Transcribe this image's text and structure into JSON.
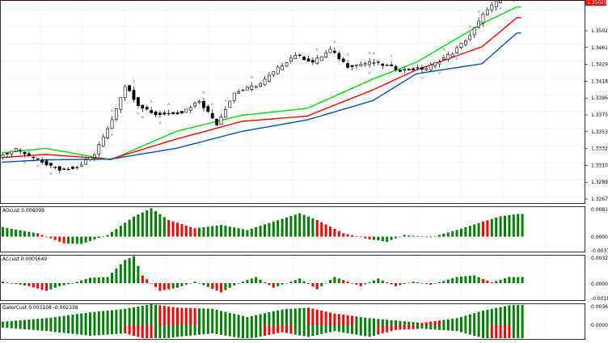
{
  "colors": {
    "background": "#ffffff",
    "grid": "#d8d8d8",
    "frame": "#000000",
    "bull_candle": "#ffffff",
    "bear_candle": "#000000",
    "ma_fast": "#00e000",
    "ma_mid": "#ff0000",
    "ma_slow": "#0050d0",
    "bar_up": "#008000",
    "bar_down": "#ff0000",
    "current_price_bg": "#ff0000",
    "fractal": "#9a9a9a"
  },
  "main": {
    "price_axis_labels": [
      "1.35025",
      "1.34610",
      "1.34295",
      "1.34180",
      "1.33965",
      "1.33750",
      "1.33535",
      "1.33320",
      "1.33105",
      "1.32890",
      "1.32675"
    ],
    "current_price": "1.35025"
  },
  "indicators": [
    {
      "name": "AOcust",
      "label": "AOcust 0.006099",
      "axis_labels": [
        "0.008125",
        "0.000000",
        "-0.003740"
      ]
    },
    {
      "name": "ACcust",
      "label": "ACcust 0.0005649",
      "axis_labels": [
        "0.0032604",
        "0.000000",
        "-0.0018932"
      ]
    },
    {
      "name": "GatorCust",
      "label": "GatorCust 0.003108 -0.002338",
      "axis_labels": [
        "0.003679",
        "0.000000"
      ]
    }
  ],
  "chart_data": [
    {
      "type": "candlestick",
      "title": "",
      "ylim": [
        1.3255,
        1.3515
      ],
      "candle_count": 120,
      "moving_averages": [
        {
          "color": "green",
          "values_at_candles": [
            [
              0,
              1.3302
            ],
            [
              10,
              1.3308
            ],
            [
              25,
              1.3293
            ],
            [
              40,
              1.333
            ],
            [
              55,
              1.3351
            ],
            [
              70,
              1.336
            ],
            [
              85,
              1.3398
            ],
            [
              95,
              1.342
            ],
            [
              110,
              1.347
            ],
            [
              118,
              1.3492
            ]
          ]
        },
        {
          "color": "red",
          "values_at_candles": [
            [
              0,
              1.3296
            ],
            [
              10,
              1.33
            ],
            [
              25,
              1.3294
            ],
            [
              40,
              1.332
            ],
            [
              55,
              1.3343
            ],
            [
              70,
              1.335
            ],
            [
              85,
              1.3384
            ],
            [
              95,
              1.341
            ],
            [
              110,
              1.344
            ],
            [
              118,
              1.3478
            ]
          ]
        },
        {
          "color": "blue",
          "values_at_candles": [
            [
              0,
              1.329
            ],
            [
              10,
              1.3293
            ],
            [
              25,
              1.3294
            ],
            [
              40,
              1.3308
            ],
            [
              55,
              1.333
            ],
            [
              70,
              1.3345
            ],
            [
              85,
              1.337
            ],
            [
              95,
              1.3405
            ],
            [
              110,
              1.3418
            ],
            [
              118,
              1.3458
            ]
          ]
        }
      ]
    },
    {
      "type": "histogram",
      "title": "AOcust 0.006099",
      "ylim": [
        -0.00374,
        0.008125
      ],
      "keypoints": [
        [
          0,
          0.0028
        ],
        [
          8,
          0.001
        ],
        [
          14,
          -0.002
        ],
        [
          18,
          -0.0022
        ],
        [
          24,
          0.0005
        ],
        [
          30,
          0.006
        ],
        [
          34,
          0.0085
        ],
        [
          38,
          0.005
        ],
        [
          44,
          0.0025
        ],
        [
          50,
          0.0035
        ],
        [
          56,
          0.002
        ],
        [
          62,
          0.0045
        ],
        [
          68,
          0.007
        ],
        [
          72,
          0.005
        ],
        [
          78,
          0.001
        ],
        [
          84,
          -0.0008
        ],
        [
          88,
          -0.0015
        ],
        [
          92,
          0.0005
        ],
        [
          98,
          -0.0002
        ],
        [
          104,
          0.002
        ],
        [
          110,
          0.0045
        ],
        [
          114,
          0.0061
        ],
        [
          118,
          0.0068
        ]
      ],
      "red_ranges": [
        [
          8,
          14
        ],
        [
          38,
          44
        ],
        [
          72,
          84
        ],
        [
          96,
          98
        ],
        [
          110,
          111
        ]
      ]
    },
    {
      "type": "histogram",
      "title": "ACcust 0.0005649",
      "ylim": [
        -0.0018932,
        0.0032604
      ],
      "keypoints": [
        [
          0,
          0.0002
        ],
        [
          6,
          -0.0004
        ],
        [
          10,
          -0.001
        ],
        [
          13,
          -0.0004
        ],
        [
          16,
          0.0
        ],
        [
          20,
          0.0007
        ],
        [
          24,
          0.0008
        ],
        [
          28,
          0.003
        ],
        [
          30,
          0.0035
        ],
        [
          32,
          0.001
        ],
        [
          36,
          -0.001
        ],
        [
          40,
          -0.0006
        ],
        [
          44,
          0.0002
        ],
        [
          50,
          -0.0012
        ],
        [
          54,
          0.0
        ],
        [
          58,
          0.0008
        ],
        [
          62,
          -0.0006
        ],
        [
          68,
          0.0006
        ],
        [
          72,
          -0.0008
        ],
        [
          76,
          0.0008
        ],
        [
          82,
          -0.0004
        ],
        [
          86,
          0.0006
        ],
        [
          90,
          -0.0004
        ],
        [
          94,
          0.0002
        ],
        [
          98,
          -0.0002
        ],
        [
          104,
          0.0008
        ],
        [
          108,
          0.001
        ],
        [
          112,
          0.0001
        ],
        [
          116,
          0.0008
        ]
      ],
      "red_ranges": [
        [
          6,
          10
        ],
        [
          32,
          38
        ],
        [
          48,
          50
        ],
        [
          60,
          62
        ],
        [
          70,
          72
        ],
        [
          78,
          82
        ],
        [
          88,
          90
        ],
        [
          96,
          98
        ],
        [
          110,
          112
        ]
      ]
    },
    {
      "type": "histogram",
      "title": "GatorCust 0.003108 -0.002338",
      "ylim": [
        -0.0028,
        0.003679
      ],
      "upper_keypoints": [
        [
          0,
          0.0006
        ],
        [
          10,
          0.0012
        ],
        [
          20,
          0.0022
        ],
        [
          28,
          0.0028
        ],
        [
          34,
          0.0036
        ],
        [
          40,
          0.003
        ],
        [
          48,
          0.0028
        ],
        [
          56,
          0.0014
        ],
        [
          64,
          0.0027
        ],
        [
          70,
          0.003
        ],
        [
          76,
          0.002
        ],
        [
          84,
          0.0012
        ],
        [
          90,
          0.0008
        ],
        [
          96,
          0.0004
        ],
        [
          104,
          0.0012
        ],
        [
          110,
          0.0025
        ],
        [
          116,
          0.0034
        ],
        [
          120,
          0.0035
        ]
      ],
      "lower_keypoints": [
        [
          0,
          -0.0004
        ],
        [
          10,
          -0.001
        ],
        [
          20,
          -0.0018
        ],
        [
          28,
          -0.0014
        ],
        [
          34,
          -0.0026
        ],
        [
          40,
          -0.002
        ],
        [
          48,
          -0.0014
        ],
        [
          56,
          -0.0024
        ],
        [
          64,
          -0.0012
        ],
        [
          70,
          -0.002
        ],
        [
          76,
          -0.001
        ],
        [
          84,
          -0.002
        ],
        [
          90,
          -0.0008
        ],
        [
          96,
          -0.0006
        ],
        [
          104,
          -0.001
        ],
        [
          110,
          -0.0022
        ],
        [
          116,
          -0.0024
        ],
        [
          120,
          -0.0026
        ]
      ],
      "red_upper_ranges": [
        [
          36,
          44
        ],
        [
          70,
          80
        ],
        [
          96,
          100
        ]
      ],
      "red_lower_ranges": [
        [
          28,
          34
        ],
        [
          60,
          66
        ],
        [
          86,
          94
        ],
        [
          112,
          116
        ]
      ]
    }
  ]
}
